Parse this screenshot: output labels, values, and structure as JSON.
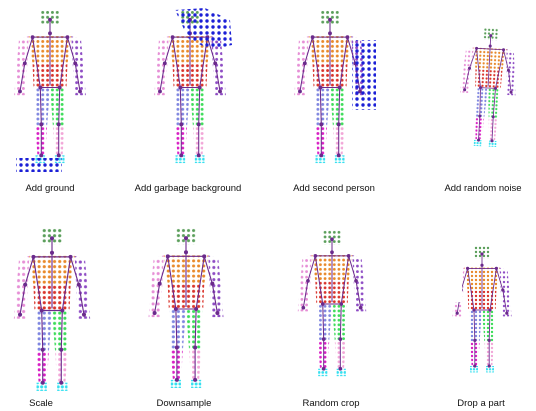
{
  "panels": [
    {
      "caption": "Add ground"
    },
    {
      "caption": "Add garbage background"
    },
    {
      "caption": "Add second person"
    },
    {
      "caption": "Add random noise"
    },
    {
      "caption": "Scale"
    },
    {
      "caption": "Downsample"
    },
    {
      "caption": "Random crop"
    },
    {
      "caption": "Drop a part"
    }
  ]
}
